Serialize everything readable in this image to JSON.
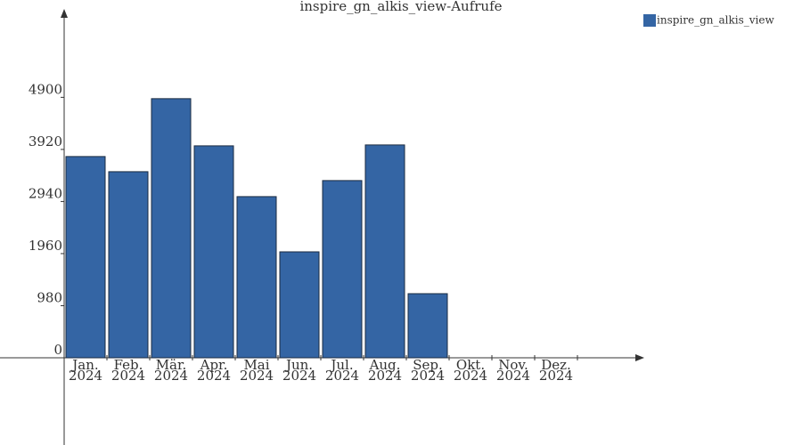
{
  "chart_data": {
    "type": "bar",
    "title": "inspire_gn_alkis_view-Aufrufe",
    "categories": [
      "Jan. 2024",
      "Feb. 2024",
      "Mär. 2024",
      "Apr. 2024",
      "Mai 2024",
      "Jun. 2024",
      "Jul. 2024",
      "Aug. 2024",
      "Sep. 2024",
      "Okt. 2024",
      "Nov. 2024",
      "Dez. 2024"
    ],
    "series": [
      {
        "name": "inspire_gn_alkis_view",
        "color": "#3465a4",
        "values": [
          3786,
          3501,
          4875,
          3987,
          3032,
          1993,
          3334,
          4004,
          1206,
          0,
          0,
          0
        ]
      }
    ],
    "ylim": [
      0,
      6480
    ],
    "yticks": [
      0,
      980,
      1960,
      2940,
      3920,
      4900
    ],
    "legend": "top-right"
  }
}
